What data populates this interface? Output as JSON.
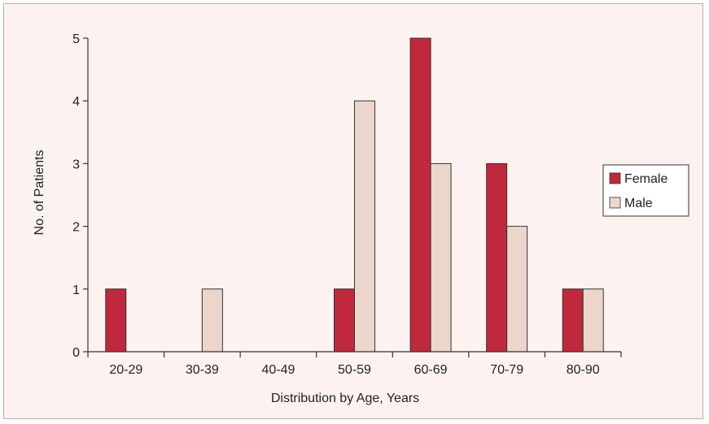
{
  "chart_data": {
    "type": "bar",
    "categories": [
      "20-29",
      "30-39",
      "40-49",
      "50-59",
      "60-69",
      "70-79",
      "80-90"
    ],
    "series": [
      {
        "name": "Female",
        "values": [
          1,
          0,
          0,
          1,
          5,
          3,
          1
        ]
      },
      {
        "name": "Male",
        "values": [
          0,
          1,
          0,
          4,
          3,
          2,
          1
        ]
      }
    ],
    "xlabel": "Distribution by Age, Years",
    "ylabel": "No. of Patients",
    "ylim": [
      0,
      5
    ],
    "yticks": [
      "0",
      "1",
      "2",
      "3",
      "4",
      "5"
    ],
    "grid": false,
    "legend_position": "right",
    "colors": {
      "Female": "#c0283e",
      "Male": "#ecd6cb",
      "background": "#fcf3f0"
    }
  }
}
